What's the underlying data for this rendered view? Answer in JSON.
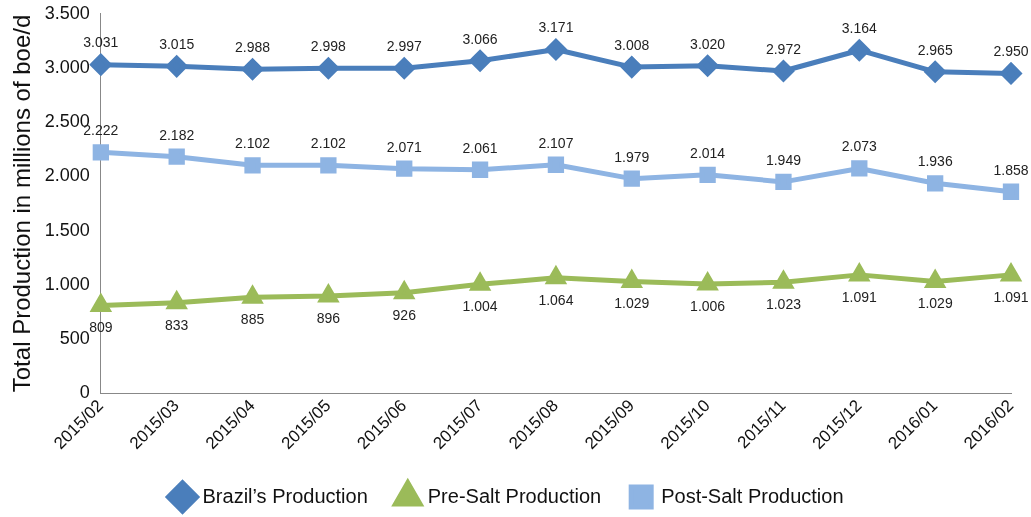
{
  "chart_data": {
    "type": "line",
    "ylabel": "Total Production in millions of boe/d",
    "categories": [
      "2015/02",
      "2015/03",
      "2015/04",
      "2015/05",
      "2015/06",
      "2015/07",
      "2015/08",
      "2015/09",
      "2015/10",
      "2015/11",
      "2015/12",
      "2016/01",
      "2016/02"
    ],
    "series": [
      {
        "name": "Brazil’s Production",
        "color": "#4a7ebb",
        "marker": "diamond",
        "values": [
          3031,
          3015,
          2988,
          2998,
          2997,
          3066,
          3171,
          3008,
          3020,
          2972,
          3164,
          2965,
          2950
        ],
        "value_labels": [
          "3.031",
          "3.015",
          "2.988",
          "2.998",
          "2.997",
          "3.066",
          "3.171",
          "3.008",
          "3.020",
          "2.972",
          "3.164",
          "2.965",
          "2.950"
        ]
      },
      {
        "name": "Pre-Salt Production",
        "color": "#9bbb59",
        "marker": "triangle",
        "values": [
          809,
          833,
          885,
          896,
          926,
          1004,
          1064,
          1029,
          1006,
          1023,
          1091,
          1029,
          1091
        ],
        "value_labels": [
          "809",
          "833",
          "885",
          "896",
          "926",
          "1.004",
          "1.064",
          "1.029",
          "1.006",
          "1.023",
          "1.091",
          "1.029",
          "1.091"
        ]
      },
      {
        "name": "Post-Salt Production",
        "color": "#8eb4e3",
        "marker": "square",
        "values": [
          2222,
          2182,
          2102,
          2102,
          2071,
          2061,
          2107,
          1979,
          2014,
          1949,
          2073,
          1936,
          1858
        ],
        "value_labels": [
          "2.222",
          "2.182",
          "2.102",
          "2.102",
          "2.071",
          "2.061",
          "2.107",
          "1.979",
          "2.014",
          "1.949",
          "2.073",
          "1.936",
          "1.858"
        ]
      }
    ],
    "ylim": [
      0,
      3500
    ],
    "yticks": [
      0,
      {
        "value": 500,
        "label": "500"
      },
      {
        "value": 1000,
        "label": "1.000"
      },
      {
        "value": 1500,
        "label": "1.500"
      },
      {
        "value": 2000,
        "label": "2.000"
      },
      {
        "value": 2500,
        "label": "2.500"
      },
      {
        "value": 3000,
        "label": "3.000"
      },
      {
        "value": 3500,
        "label": "3.500"
      }
    ],
    "grid": false,
    "legend": "bottom"
  }
}
